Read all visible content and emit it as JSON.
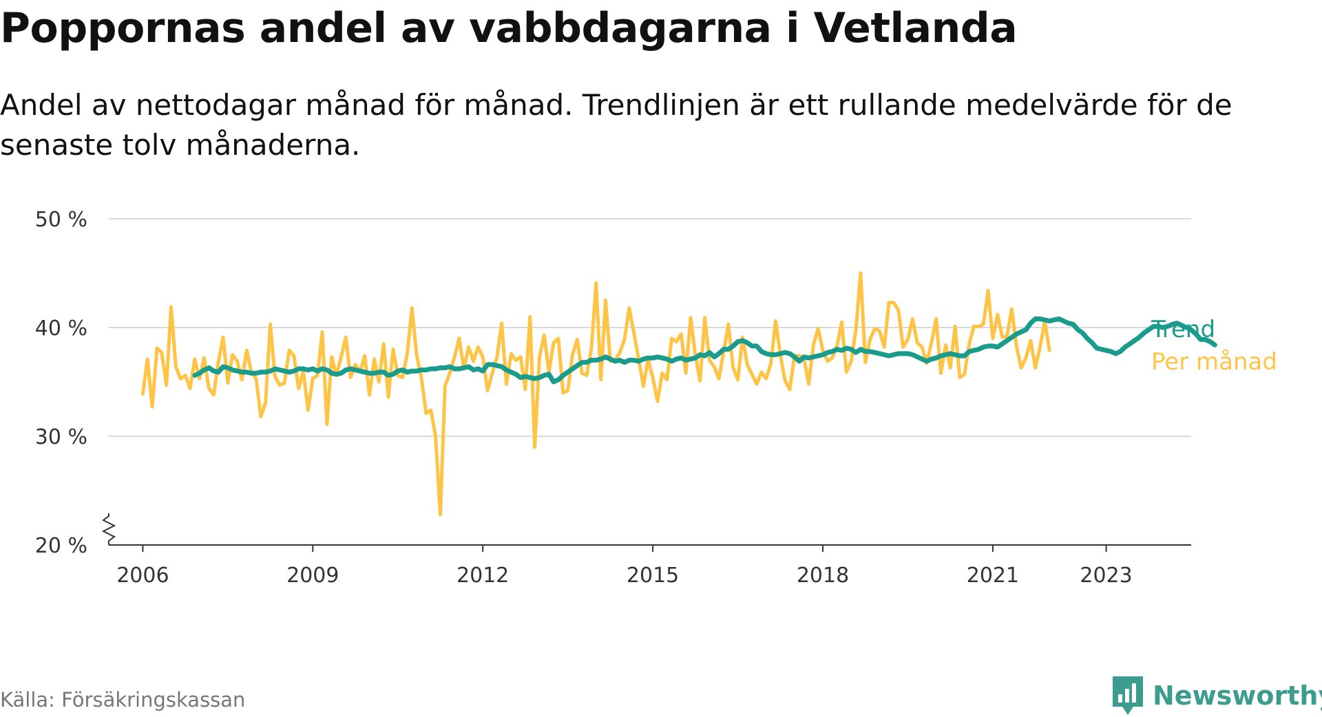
{
  "title": "Poppornas andel av vabbdagarna i Vetlanda",
  "subtitle": "Andel av nettodagar månad för månad. Trendlinjen är ett rullande medelvärde för de senaste tolv månaderna.",
  "source": "Källa: Försäkringskassan",
  "brand": {
    "name": "Newsworthy",
    "icon": "newsworthy-logo-icon"
  },
  "colors": {
    "trend": "#1a9b8c",
    "monthly": "#ffc445",
    "grid": "#d9d9d9",
    "axis": "#333333"
  },
  "chart_data": {
    "type": "line",
    "x_axis": {
      "ticks": [
        2006,
        2009,
        2012,
        2015,
        2018,
        2021,
        2023
      ],
      "tick_labels": [
        "2006",
        "2009",
        "2012",
        "2015",
        "2018",
        "2021",
        "2023"
      ],
      "range": [
        2005.4,
        2024.5
      ]
    },
    "y_axis": {
      "ticks": [
        20,
        30,
        40,
        50
      ],
      "tick_labels": [
        "20 %",
        "30 %",
        "40 %",
        "50 %"
      ],
      "range": [
        20,
        50
      ],
      "broken_axis": true
    },
    "grid": true,
    "legend": "right end labels",
    "series": [
      {
        "name": "Trend",
        "start": 2006.917,
        "step_months": 1,
        "values": [
          35.6,
          35.8,
          36.1,
          36.3,
          36.0,
          35.9,
          36.4,
          36.3,
          36.1,
          36.0,
          35.9,
          35.9,
          35.8,
          35.8,
          35.9,
          35.9,
          36.0,
          36.2,
          36.1,
          36.0,
          35.9,
          36.0,
          36.2,
          36.2,
          36.1,
          36.2,
          36.0,
          36.2,
          36.1,
          35.8,
          35.7,
          35.8,
          36.1,
          36.2,
          36.1,
          36.0,
          35.9,
          35.8,
          35.8,
          35.9,
          35.9,
          35.6,
          35.7,
          36.0,
          36.1,
          35.9,
          36.0,
          36.0,
          36.1,
          36.1,
          36.2,
          36.2,
          36.3,
          36.3,
          36.4,
          36.2,
          36.2,
          36.3,
          36.4,
          36.1,
          36.2,
          36.0,
          36.6,
          36.6,
          36.5,
          36.4,
          36.1,
          35.9,
          35.7,
          35.4,
          35.5,
          35.4,
          35.3,
          35.4,
          35.6,
          35.7,
          35.0,
          35.2,
          35.6,
          35.9,
          36.2,
          36.5,
          36.8,
          36.8,
          37.0,
          37.0,
          37.1,
          37.3,
          37.1,
          36.9,
          37.0,
          36.8,
          37.0,
          37.0,
          36.9,
          37.1,
          37.2,
          37.2,
          37.3,
          37.2,
          37.1,
          36.9,
          37.1,
          37.2,
          37.0,
          37.1,
          37.2,
          37.5,
          37.4,
          37.7,
          37.3,
          37.6,
          38.0,
          38.0,
          38.3,
          38.7,
          38.8,
          38.6,
          38.3,
          38.3,
          37.8,
          37.6,
          37.5,
          37.5,
          37.6,
          37.7,
          37.6,
          37.3,
          36.9,
          37.3,
          37.2,
          37.3,
          37.4,
          37.5,
          37.7,
          37.8,
          38.0,
          37.9,
          38.1,
          38.0,
          37.7,
          38.0,
          37.8,
          37.8,
          37.7,
          37.6,
          37.5,
          37.4,
          37.5,
          37.6,
          37.6,
          37.6,
          37.5,
          37.3,
          37.1,
          36.9,
          37.1,
          37.2,
          37.4,
          37.5,
          37.6,
          37.5,
          37.4,
          37.4,
          37.8,
          37.9,
          38.0,
          38.2,
          38.3,
          38.3,
          38.2,
          38.5,
          38.8,
          39.1,
          39.4,
          39.6,
          39.8,
          40.4,
          40.8,
          40.8,
          40.7,
          40.6,
          40.7,
          40.8,
          40.6,
          40.4,
          40.3,
          39.8,
          39.5,
          39.0,
          38.6,
          38.1,
          38.0,
          37.9,
          37.8,
          37.6,
          37.8,
          38.2,
          38.5,
          38.8,
          39.1,
          39.5,
          39.8,
          40.1,
          40.1,
          40.0,
          40.1,
          40.3,
          40.4,
          40.2,
          40.0,
          39.8,
          39.4,
          38.9,
          38.9,
          38.7,
          38.4
        ]
      },
      {
        "name": "Per månad",
        "start": 2006.0,
        "step_months": 1,
        "values": [
          33.9,
          37.1,
          32.7,
          38.1,
          37.7,
          34.7,
          41.9,
          36.4,
          35.3,
          35.6,
          34.4,
          37.1,
          35.3,
          37.2,
          34.4,
          33.8,
          36.8,
          39.1,
          34.9,
          37.5,
          36.9,
          35.2,
          37.9,
          35.9,
          35.3,
          31.8,
          33.1,
          40.3,
          35.5,
          34.7,
          34.9,
          37.9,
          37.4,
          34.4,
          36.0,
          32.4,
          35.3,
          35.6,
          39.6,
          31.1,
          37.3,
          35.6,
          37.3,
          39.1,
          35.4,
          36.6,
          35.9,
          37.4,
          33.8,
          37.1,
          35.0,
          38.5,
          33.6,
          38.0,
          35.6,
          35.4,
          37.6,
          41.8,
          37.4,
          35.4,
          32.1,
          32.4,
          30.0,
          22.8,
          34.6,
          35.8,
          37.3,
          39.0,
          36.2,
          38.2,
          36.9,
          38.2,
          37.3,
          34.2,
          35.8,
          37.3,
          40.4,
          34.8,
          37.6,
          37.0,
          37.3,
          34.3,
          41.0,
          29.0,
          37.3,
          39.3,
          35.9,
          38.6,
          39.0,
          34.0,
          34.2,
          37.5,
          38.9,
          35.8,
          35.6,
          38.1,
          44.1,
          35.2,
          42.5,
          36.9,
          37.0,
          37.7,
          38.9,
          41.8,
          39.5,
          37.1,
          34.6,
          37.1,
          35.4,
          33.2,
          35.8,
          35.2,
          39.0,
          38.7,
          39.4,
          35.8,
          40.9,
          37.5,
          35.1,
          40.9,
          37.0,
          36.4,
          35.3,
          37.8,
          40.3,
          36.3,
          35.2,
          39.1,
          36.6,
          35.7,
          34.8,
          35.9,
          35.3,
          36.7,
          40.6,
          37.5,
          35.1,
          34.3,
          37.4,
          37.4,
          37.2,
          34.8,
          38.4,
          39.9,
          37.9,
          36.9,
          37.2,
          38.3,
          40.5,
          35.9,
          36.9,
          39.8,
          45.0,
          36.8,
          38.9,
          39.9,
          39.7,
          38.2,
          42.3,
          42.3,
          41.6,
          38.2,
          38.9,
          40.8,
          38.6,
          38.2,
          36.7,
          38.6,
          40.8,
          35.8,
          38.4,
          36.3,
          40.1,
          35.4,
          35.7,
          38.5,
          40.1,
          40.1,
          40.3,
          43.4,
          39.0,
          41.2,
          39.1,
          39.2,
          41.7,
          38.3,
          36.3,
          37.2,
          38.8,
          36.3,
          38.2,
          40.6,
          37.9
        ]
      }
    ]
  }
}
